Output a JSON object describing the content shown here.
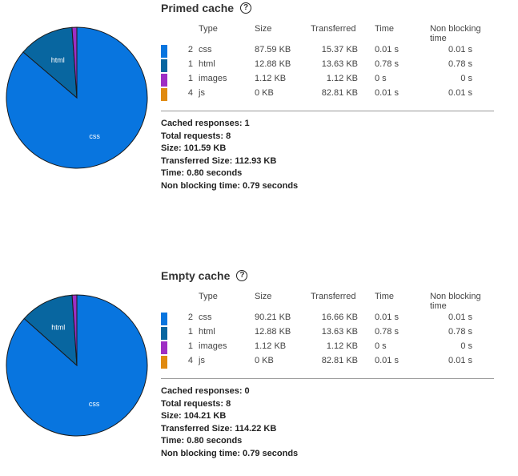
{
  "sections": [
    {
      "title": "Primed cache",
      "pie": {
        "slices": [
          {
            "label": "css",
            "value": 87.59,
            "color": "#0875DF"
          },
          {
            "label": "html",
            "value": 12.88,
            "color": "#0866A0"
          },
          {
            "label": "images",
            "value": 1.12,
            "color": "#9E2EC4"
          },
          {
            "label": "js",
            "value": 0,
            "color": "#E08A10"
          }
        ]
      },
      "table": {
        "headers": [
          "Type",
          "Size",
          "Transferred",
          "Time",
          "Non blocking time"
        ],
        "rows": [
          {
            "color": "#0875DF",
            "count": "2",
            "type": "css",
            "size": "87.59 KB",
            "transferred": "15.37 KB",
            "time": "0.01 s",
            "nb_time": "0.01 s"
          },
          {
            "color": "#0866A0",
            "count": "1",
            "type": "html",
            "size": "12.88 KB",
            "transferred": "13.63 KB",
            "time": "0.78 s",
            "nb_time": "0.78 s"
          },
          {
            "color": "#9E2EC4",
            "count": "1",
            "type": "images",
            "size": "1.12 KB",
            "transferred": "1.12 KB",
            "time": "0 s",
            "nb_time": "0 s"
          },
          {
            "color": "#E08A10",
            "count": "4",
            "type": "js",
            "size": "0 KB",
            "transferred": "82.81 KB",
            "time": "0.01 s",
            "nb_time": "0.01 s"
          }
        ]
      },
      "summary": [
        "Cached responses: 1",
        "Total requests: 8",
        "Size: 101.59 KB",
        "Transferred Size: 112.93 KB",
        "Time: 0.80 seconds",
        "Non blocking time: 0.79 seconds"
      ]
    },
    {
      "title": "Empty cache",
      "pie": {
        "slices": [
          {
            "label": "css",
            "value": 90.21,
            "color": "#0875DF"
          },
          {
            "label": "html",
            "value": 12.88,
            "color": "#0866A0"
          },
          {
            "label": "images",
            "value": 1.12,
            "color": "#9E2EC4"
          },
          {
            "label": "js",
            "value": 0,
            "color": "#E08A10"
          }
        ]
      },
      "table": {
        "headers": [
          "Type",
          "Size",
          "Transferred",
          "Time",
          "Non blocking time"
        ],
        "rows": [
          {
            "color": "#0875DF",
            "count": "2",
            "type": "css",
            "size": "90.21 KB",
            "transferred": "16.66 KB",
            "time": "0.01 s",
            "nb_time": "0.01 s"
          },
          {
            "color": "#0866A0",
            "count": "1",
            "type": "html",
            "size": "12.88 KB",
            "transferred": "13.63 KB",
            "time": "0.78 s",
            "nb_time": "0.78 s"
          },
          {
            "color": "#9E2EC4",
            "count": "1",
            "type": "images",
            "size": "1.12 KB",
            "transferred": "1.12 KB",
            "time": "0 s",
            "nb_time": "0 s"
          },
          {
            "color": "#E08A10",
            "count": "4",
            "type": "js",
            "size": "0 KB",
            "transferred": "82.81 KB",
            "time": "0.01 s",
            "nb_time": "0.01 s"
          }
        ]
      },
      "summary": [
        "Cached responses: 0",
        "Total requests: 8",
        "Size: 104.21 KB",
        "Transferred Size: 114.22 KB",
        "Time: 0.80 seconds",
        "Non blocking time: 0.79 seconds"
      ]
    }
  ]
}
